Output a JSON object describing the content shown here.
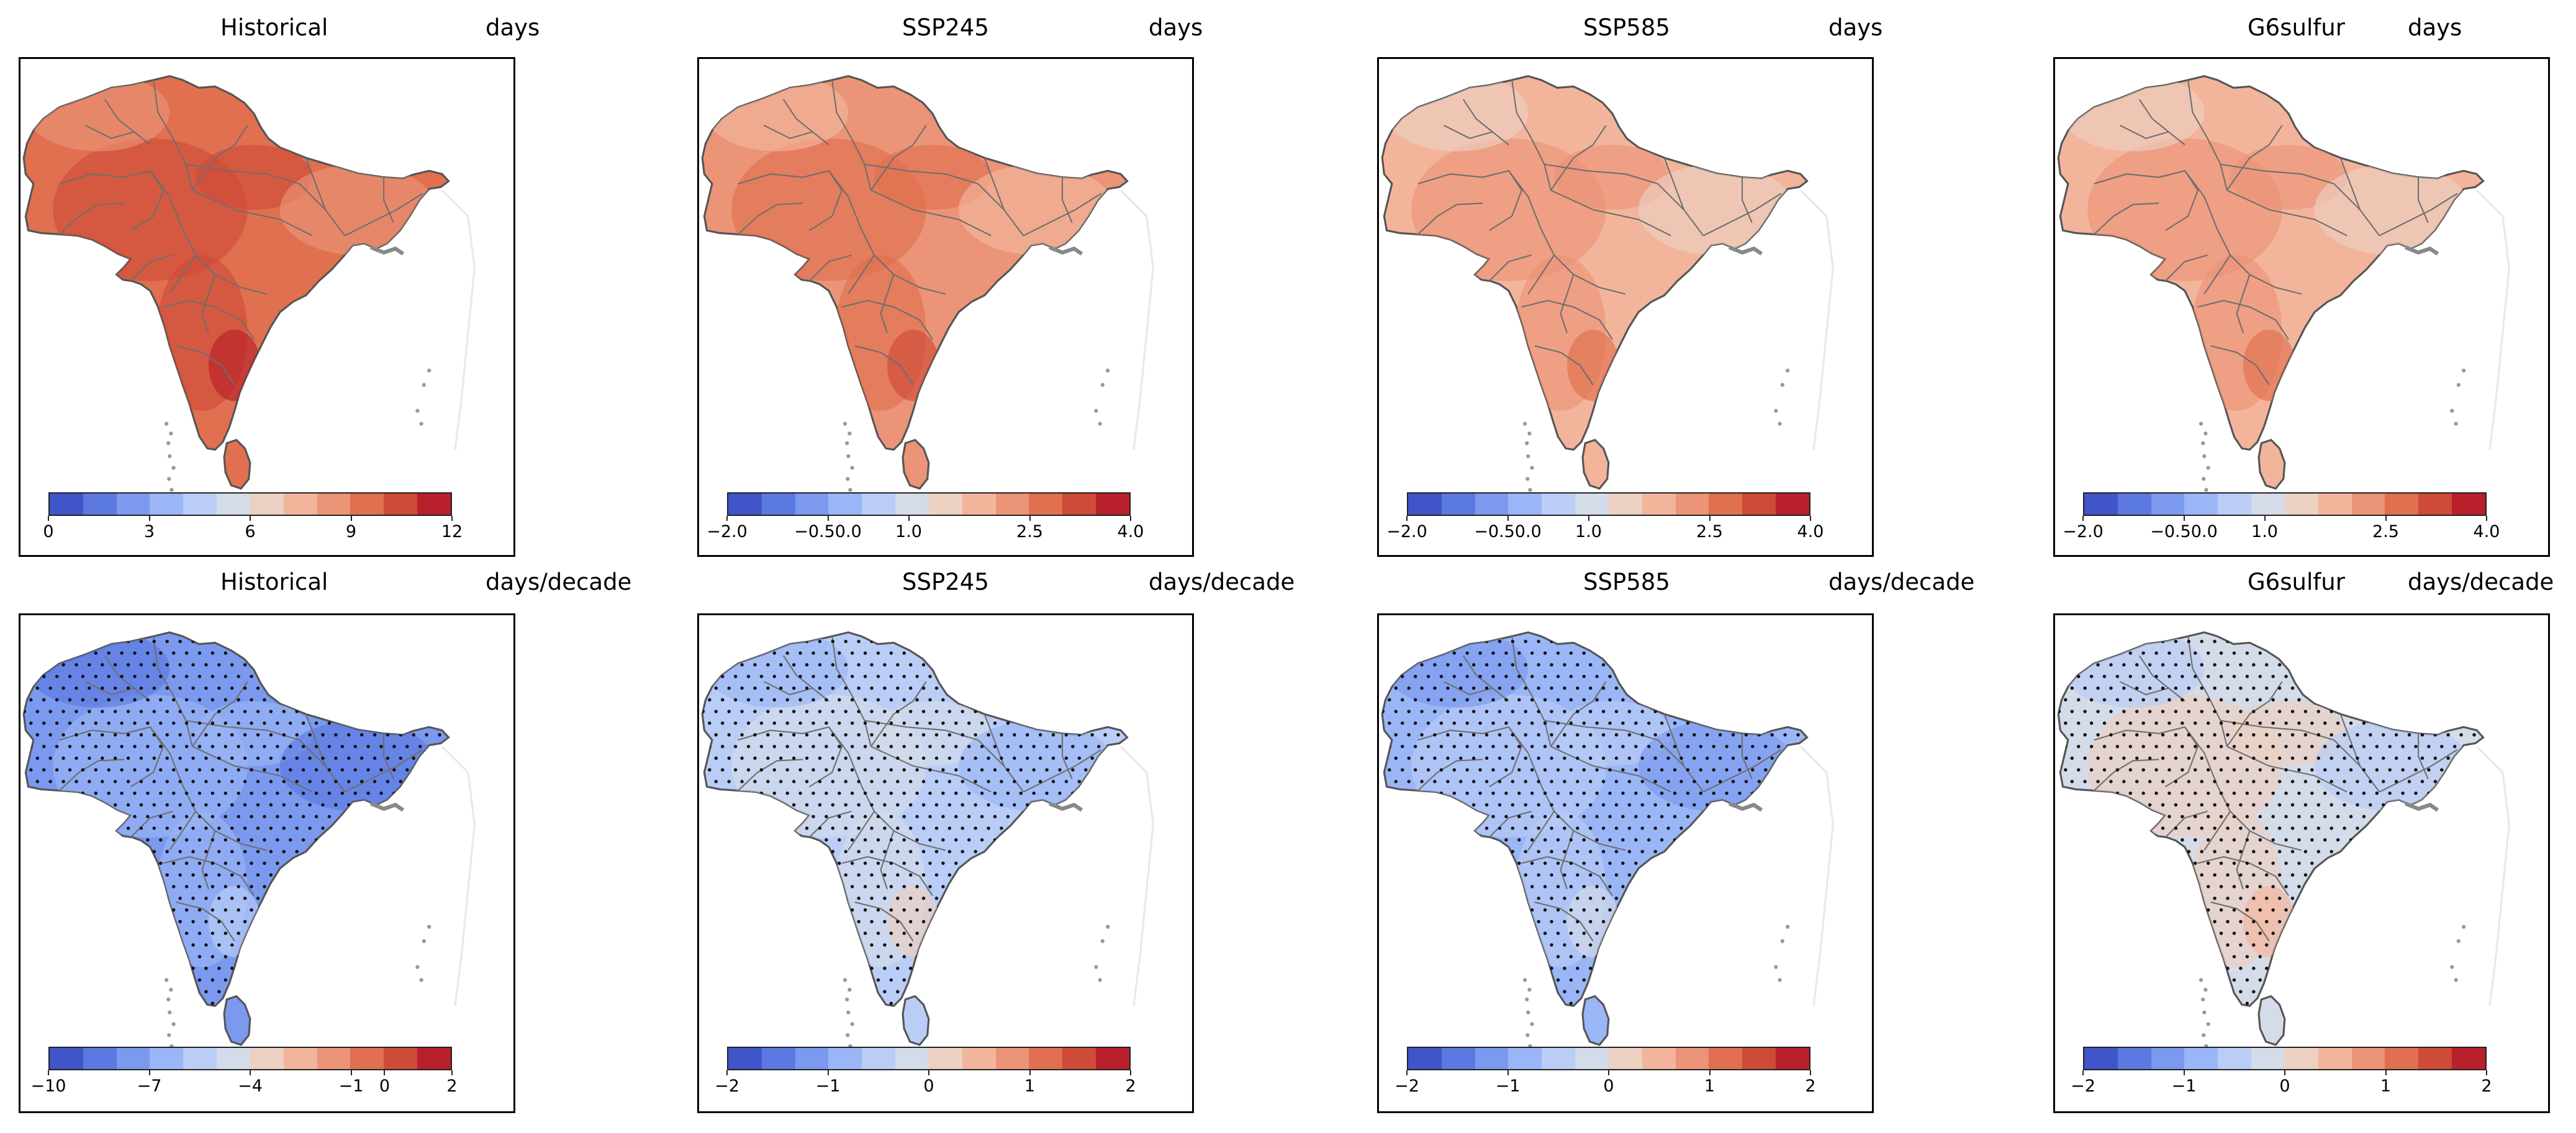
{
  "figure": "South Asia maps of extreme-heat days: climatology (top) and trend (bottom) under four scenarios",
  "colors": {
    "coolwarm_12": [
      "#3f55c9",
      "#5b79e1",
      "#7b99ee",
      "#9ab6f6",
      "#b9cdf7",
      "#d4dbe9",
      "#ecd0c2",
      "#f2b59b",
      "#eb9478",
      "#e0704f",
      "#cf4b39",
      "#b8202b"
    ],
    "stipple": "#111111",
    "border": "#6e6e6e",
    "lightland": "#e8e8e8"
  },
  "panels": [
    {
      "row": "top",
      "title": "Historical",
      "unit": "days",
      "ticks": [
        "0",
        "3",
        "6",
        "9",
        "12"
      ],
      "tick_pos": [
        0,
        0.25,
        0.5,
        0.75,
        1
      ],
      "range": [
        0,
        12
      ],
      "fill_index": 9,
      "stipple": false
    },
    {
      "row": "top",
      "title": "SSP245",
      "unit": "days",
      "ticks": [
        "−2.0",
        "−0.50.0",
        "1.0",
        "2.5",
        "4.0"
      ],
      "tick_pos": [
        0,
        0.25,
        0.45,
        0.75,
        1
      ],
      "range": [
        -2.0,
        4.0
      ],
      "fill_index": 8,
      "stipple": false
    },
    {
      "row": "top",
      "title": "SSP585",
      "unit": "days",
      "ticks": [
        "−2.0",
        "−0.50.0",
        "1.0",
        "2.5",
        "4.0"
      ],
      "tick_pos": [
        0,
        0.25,
        0.45,
        0.75,
        1
      ],
      "range": [
        -2.0,
        4.0
      ],
      "fill_index": 7,
      "stipple": false
    },
    {
      "row": "top",
      "title": "G6sulfur",
      "unit": "days",
      "ticks": [
        "−2.0",
        "−0.50.0",
        "1.0",
        "2.5",
        "4.0"
      ],
      "tick_pos": [
        0,
        0.25,
        0.45,
        0.75,
        1
      ],
      "range": [
        -2.0,
        4.0
      ],
      "fill_index": 7,
      "stipple": false
    },
    {
      "row": "bottom",
      "title": "Historical",
      "unit": "days/decade",
      "ticks": [
        "−10",
        "−7",
        "−4",
        "−1",
        "0",
        "2"
      ],
      "tick_pos": [
        0,
        0.25,
        0.5,
        0.75,
        0.833,
        1
      ],
      "range": [
        -10,
        2
      ],
      "fill_index": 2,
      "stipple": true
    },
    {
      "row": "bottom",
      "title": "SSP245",
      "unit": "days/decade",
      "ticks": [
        "−2",
        "−1",
        "0",
        "1",
        "2"
      ],
      "tick_pos": [
        0,
        0.25,
        0.5,
        0.75,
        1
      ],
      "range": [
        -2,
        2
      ],
      "fill_index": 4,
      "stipple": true
    },
    {
      "row": "bottom",
      "title": "SSP585",
      "unit": "days/decade",
      "ticks": [
        "−2",
        "−1",
        "0",
        "1",
        "2"
      ],
      "tick_pos": [
        0,
        0.25,
        0.5,
        0.75,
        1
      ],
      "range": [
        -2,
        2
      ],
      "fill_index": 3,
      "stipple": true
    },
    {
      "row": "bottom",
      "title": "G6sulfur",
      "unit": "days/decade",
      "ticks": [
        "−2",
        "−1",
        "0",
        "1",
        "2"
      ],
      "tick_pos": [
        0,
        0.25,
        0.5,
        0.75,
        1
      ],
      "range": [
        -2,
        2
      ],
      "fill_index": 5,
      "stipple": true
    }
  ],
  "chart_data": [
    {
      "type": "heatmap",
      "title": "Historical",
      "unit": "days",
      "colorbar_ticks": [
        "0",
        "3",
        "6",
        "9",
        "12"
      ],
      "range": [
        0,
        12
      ]
    },
    {
      "type": "heatmap",
      "title": "SSP245",
      "unit": "days",
      "colorbar_ticks": [
        "−2.0",
        "−0.50.0",
        "1.0",
        "2.5",
        "4.0"
      ],
      "range": [
        -2.0,
        4.0
      ]
    },
    {
      "type": "heatmap",
      "title": "SSP585",
      "unit": "days",
      "colorbar_ticks": [
        "−2.0",
        "−0.50.0",
        "1.0",
        "2.5",
        "4.0"
      ],
      "range": [
        -2.0,
        4.0
      ]
    },
    {
      "type": "heatmap",
      "title": "G6sulfur",
      "unit": "days",
      "colorbar_ticks": [
        "−2.0",
        "−0.50.0",
        "1.0",
        "2.5",
        "4.0"
      ],
      "range": [
        -2.0,
        4.0
      ]
    },
    {
      "type": "heatmap",
      "title": "Historical",
      "unit": "days/decade",
      "colorbar_ticks": [
        "−10",
        "−7",
        "−4",
        "−1",
        "0",
        "2"
      ],
      "range": [
        -10,
        2
      ]
    },
    {
      "type": "heatmap",
      "title": "SSP245",
      "unit": "days/decade",
      "colorbar_ticks": [
        "−2",
        "−1",
        "0",
        "1",
        "2"
      ],
      "range": [
        -2,
        2
      ]
    },
    {
      "type": "heatmap",
      "title": "SSP585",
      "unit": "days/decade",
      "colorbar_ticks": [
        "−2",
        "−1",
        "0",
        "1",
        "2"
      ],
      "range": [
        -2,
        2
      ]
    },
    {
      "type": "heatmap",
      "title": "G6sulfur",
      "unit": "days/decade",
      "colorbar_ticks": [
        "−2",
        "−1",
        "0",
        "1",
        "2"
      ],
      "range": [
        -2,
        2
      ]
    }
  ]
}
